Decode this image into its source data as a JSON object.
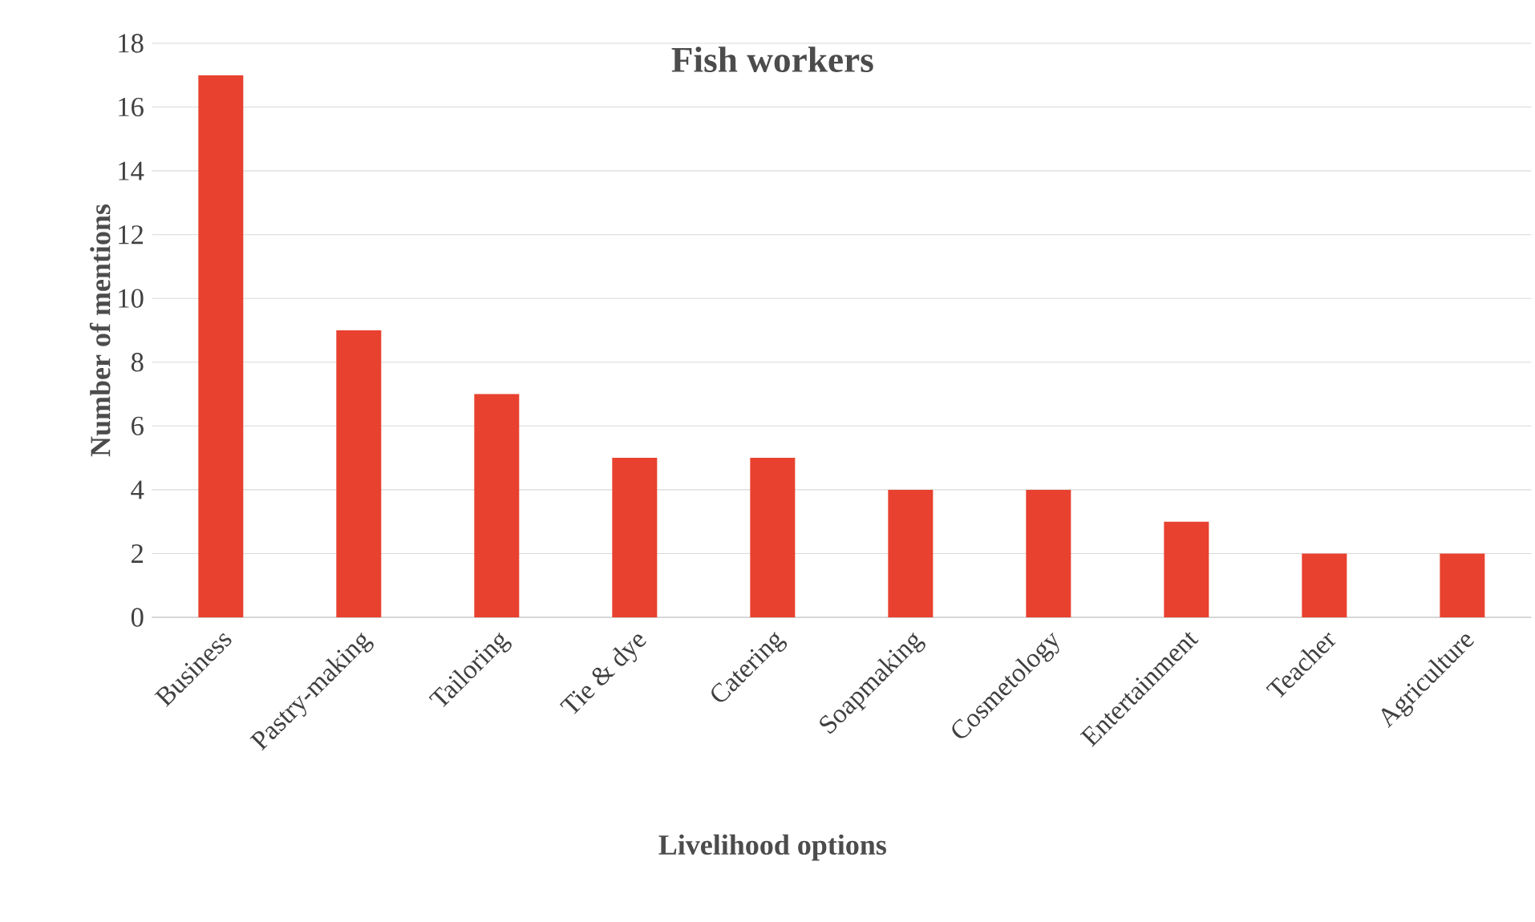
{
  "chart_data": {
    "type": "bar",
    "title": "Fish workers",
    "xlabel": "Livelihood options",
    "ylabel": "Number of mentions",
    "categories": [
      "Business",
      "Pastry-making",
      "Tailoring",
      "Tie & dye",
      "Catering",
      "Soapmaking",
      "Cosmetology",
      "Entertainment",
      "Teacher",
      "Agriculture"
    ],
    "values": [
      17,
      9,
      7,
      5,
      5,
      4,
      4,
      3,
      2,
      2
    ],
    "color": "#e8412f",
    "ylim": [
      0,
      18
    ],
    "yticks": [
      0,
      2,
      4,
      6,
      8,
      10,
      12,
      14,
      16,
      18
    ],
    "grid": "y"
  }
}
